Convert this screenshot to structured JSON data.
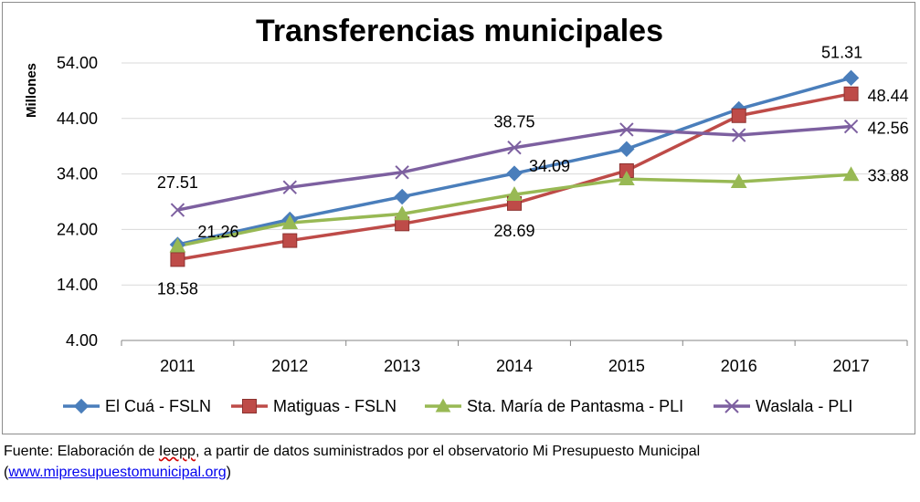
{
  "chart_data": {
    "type": "line",
    "title": "Transferencias municipales",
    "ylabel": "Millones",
    "xlabel": "",
    "categories": [
      "2011",
      "2012",
      "2013",
      "2014",
      "2015",
      "2016",
      "2017"
    ],
    "ylim": [
      4,
      54
    ],
    "yticks": [
      "4.00",
      "14.00",
      "24.00",
      "34.00",
      "44.00",
      "54.00"
    ],
    "grid": "horizontal",
    "legend": "bottom",
    "series": [
      {
        "name": "El Cuá - FSLN",
        "color": "#4a7ebb",
        "marker": "diamond",
        "values": [
          21.26,
          25.8,
          29.9,
          34.09,
          38.5,
          45.7,
          51.31
        ]
      },
      {
        "name": "Matiguas - FSLN",
        "color": "#be4b48",
        "marker": "square",
        "values": [
          18.58,
          22.0,
          25.0,
          28.69,
          34.6,
          44.5,
          48.44
        ]
      },
      {
        "name": "Sta. María de Pantasma - PLI",
        "color": "#98b954",
        "marker": "triangle",
        "values": [
          21.0,
          25.2,
          26.8,
          30.3,
          33.1,
          32.6,
          33.88
        ]
      },
      {
        "name": "Waslala - PLI",
        "color": "#7d60a0",
        "marker": "x",
        "values": [
          27.51,
          31.6,
          34.3,
          38.75,
          42.0,
          41.0,
          42.56
        ]
      }
    ],
    "data_labels": [
      {
        "text": "27.51",
        "series": 3,
        "index": 0
      },
      {
        "text": "21.26",
        "series": 0,
        "index": 0
      },
      {
        "text": "18.58",
        "series": 1,
        "index": 0
      },
      {
        "text": "38.75",
        "series": 3,
        "index": 3
      },
      {
        "text": "34.09",
        "series": 0,
        "index": 3
      },
      {
        "text": "28.69",
        "series": 1,
        "index": 3
      },
      {
        "text": "51.31",
        "series": 0,
        "index": 6
      },
      {
        "text": "48.44",
        "series": 1,
        "index": 6
      },
      {
        "text": "42.56",
        "series": 3,
        "index": 6
      },
      {
        "text": "33.88",
        "series": 2,
        "index": 6
      }
    ]
  },
  "source": {
    "prefix": "Fuente: Elaboración de ",
    "org": "Ieepp",
    "middle": ", a partir de datos suministrados por el observatorio Mi Presupuesto Municipal",
    "open_paren": "(",
    "link_text": "www.mipresupuestomunicipal.org",
    "close_paren": ")"
  }
}
